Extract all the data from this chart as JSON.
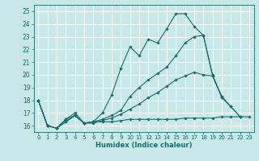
{
  "xlabel": "Humidex (Indice chaleur)",
  "xlim": [
    -0.5,
    23.5
  ],
  "ylim": [
    15.5,
    25.5
  ],
  "yticks": [
    16,
    17,
    18,
    19,
    20,
    21,
    22,
    23,
    24,
    25
  ],
  "xticks": [
    0,
    1,
    2,
    3,
    4,
    5,
    6,
    7,
    8,
    9,
    10,
    11,
    12,
    13,
    14,
    15,
    16,
    17,
    18,
    19,
    20,
    21,
    22,
    23
  ],
  "bg_color": "#c8e8e8",
  "grid_color": "#ffffff",
  "line_color": "#1a6b6b",
  "lines": [
    {
      "x": [
        0,
        1,
        2,
        3,
        4,
        5,
        6,
        7,
        8,
        9,
        10,
        11,
        12,
        13,
        14,
        15,
        16,
        17,
        18,
        19,
        20,
        21,
        22,
        23
      ],
      "y": [
        18,
        16,
        15.8,
        16.5,
        16.8,
        16.2,
        16.3,
        16.3,
        16.3,
        16.4,
        16.5,
        16.5,
        16.5,
        16.5,
        16.5,
        16.5,
        16.6,
        16.6,
        16.6,
        16.6,
        16.7,
        16.7,
        16.7,
        16.7
      ]
    },
    {
      "x": [
        0,
        1,
        2,
        3,
        4,
        5,
        6,
        7,
        8,
        9,
        10,
        11,
        12,
        13,
        14,
        15,
        16,
        17,
        18,
        19,
        20,
        21,
        22
      ],
      "y": [
        18,
        16,
        15.8,
        16.5,
        17.0,
        16.2,
        16.3,
        17.0,
        18.4,
        20.5,
        22.2,
        21.5,
        22.8,
        22.5,
        23.6,
        24.8,
        24.8,
        23.8,
        23.1,
        19.9,
        18.3,
        17.5,
        16.7
      ]
    },
    {
      "x": [
        0,
        1,
        2,
        3,
        4,
        5,
        6,
        7,
        8,
        9,
        10,
        11,
        12,
        13,
        14,
        15,
        16,
        17,
        18,
        19,
        20,
        21,
        22
      ],
      "y": [
        18,
        16,
        15.8,
        16.3,
        16.8,
        16.2,
        16.3,
        16.5,
        16.8,
        17.2,
        18.3,
        19.0,
        19.6,
        20.1,
        20.6,
        21.5,
        22.5,
        23.0,
        23.1,
        20.0,
        18.2,
        17.5,
        16.7
      ]
    },
    {
      "x": [
        0,
        1,
        2,
        3,
        4,
        5,
        6,
        7,
        8,
        9,
        10,
        11,
        12,
        13,
        14,
        15,
        16,
        17,
        18,
        19,
        20
      ],
      "y": [
        18,
        16,
        15.8,
        16.3,
        16.8,
        16.2,
        16.2,
        16.4,
        16.6,
        16.9,
        17.3,
        17.7,
        18.2,
        18.6,
        19.1,
        19.6,
        19.9,
        20.2,
        20.0,
        19.9,
        18.3
      ]
    }
  ]
}
